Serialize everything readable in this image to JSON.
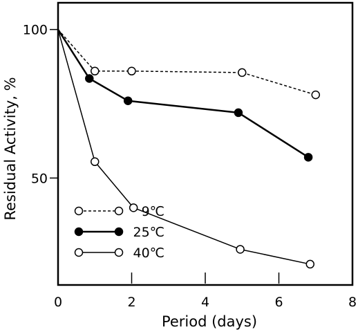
{
  "chart_data": {
    "type": "line",
    "title": "",
    "xlabel": "Period (days)",
    "ylabel": "Residual Activity, %",
    "xlim": [
      0,
      8
    ],
    "ylim": [
      14,
      109
    ],
    "xticks": [
      0,
      2,
      4,
      6,
      8
    ],
    "yticks": [
      50,
      100
    ],
    "grid": false,
    "legend_position": "bottom-left",
    "series": [
      {
        "name": "9℃",
        "marker": "open-circle",
        "line_style": "dashed",
        "x": [
          0,
          1,
          2,
          5,
          7
        ],
        "y": [
          100,
          86,
          86,
          85.5,
          78
        ]
      },
      {
        "name": "25℃",
        "marker": "filled-circle",
        "line_style": "solid-bold",
        "x": [
          0,
          0.85,
          1.9,
          4.9,
          6.8
        ],
        "y": [
          100,
          83.5,
          76,
          72,
          57
        ]
      },
      {
        "name": "40℃",
        "marker": "open-circle",
        "line_style": "solid",
        "x": [
          0,
          1,
          2.05,
          4.95,
          6.85
        ],
        "y": [
          100,
          55.5,
          40,
          26,
          21
        ]
      }
    ]
  }
}
